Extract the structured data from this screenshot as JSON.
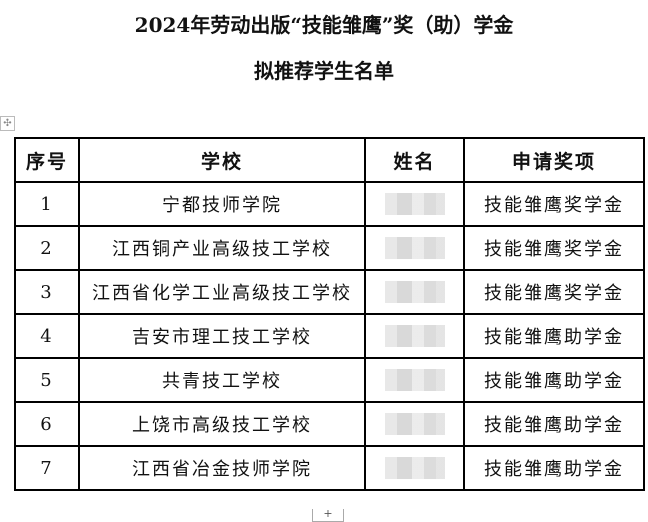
{
  "title_line1": "2024年劳动出版“技能雏鹰”奖（助）学金",
  "title_line2": "拟推荐学生名单",
  "table": {
    "headers": [
      "序号",
      "学校",
      "姓名",
      "申请奖项"
    ],
    "rows": [
      {
        "no": "1",
        "school": "宁都技师学院",
        "award": "技能雏鹰奖学金"
      },
      {
        "no": "2",
        "school": "江西铜产业高级技工学校",
        "award": "技能雏鹰奖学金"
      },
      {
        "no": "3",
        "school": "江西省化学工业高级技工学校",
        "award": "技能雏鹰奖学金"
      },
      {
        "no": "4",
        "school": "吉安市理工技工学校",
        "award": "技能雏鹰助学金"
      },
      {
        "no": "5",
        "school": "共青技工学校",
        "award": "技能雏鹰助学金"
      },
      {
        "no": "6",
        "school": "上饶市高级技工学校",
        "award": "技能雏鹰助学金"
      },
      {
        "no": "7",
        "school": "江西省冶金技师学院",
        "award": "技能雏鹰助学金"
      }
    ]
  },
  "icons": {
    "table_move": "move-handle-icon",
    "add_row": "plus-icon"
  }
}
